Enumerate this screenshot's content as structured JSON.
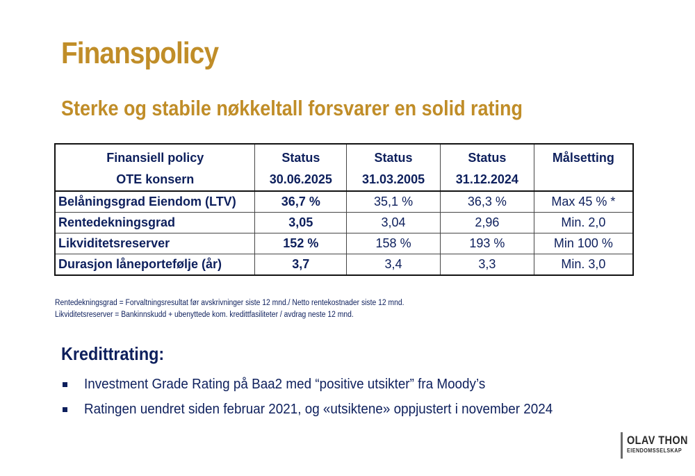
{
  "title": "Finanspolicy",
  "subtitle": "Sterke og stabile nøkkeltall forsvarer en solid rating",
  "table": {
    "header_row1": [
      "Finansiell policy",
      "Status",
      "Status",
      "Status",
      "Målsetting"
    ],
    "header_row2": [
      "OTE konsern",
      "30.06.2025",
      "31.03.2005",
      "31.12.2024",
      ""
    ],
    "rows": [
      [
        "Belåningsgrad Eiendom (LTV)",
        "36,7 %",
        "35,1 %",
        "36,3 %",
        "Max 45 % *"
      ],
      [
        "Rentedekningsgrad",
        "3,05",
        "3,04",
        "2,96",
        "Min. 2,0"
      ],
      [
        "Likviditetsreserver",
        "152 %",
        "158 %",
        "193 %",
        "Min 100 %"
      ],
      [
        "Durasjon låneportefølje (år)",
        "3,7",
        "3,4",
        "3,3",
        "Min. 3,0"
      ]
    ]
  },
  "notes": [
    "Rentedekningsgrad = Forvaltningsresultat før avskrivninger siste 12 mnd./ Netto rentekostnader siste 12 mnd.",
    "Likviditetsreserver = Bankinnskudd + ubenyttede kom.  kredittfasiliteter / avdrag neste 12 mnd."
  ],
  "credit": {
    "heading": "Kredittrating:",
    "bullets": [
      "Investment Grade Rating på Baa2 med “positive utsikter” fra Moody’s",
      "Ratingen uendret siden februar 2021, og «utsiktene» oppjustert i november 2024"
    ]
  },
  "logo": {
    "line1": "OLAV THON",
    "line2": "EIENDOMSSELSKAP"
  },
  "colors": {
    "gold": "#c08d28",
    "navy": "#0d1f5c"
  }
}
